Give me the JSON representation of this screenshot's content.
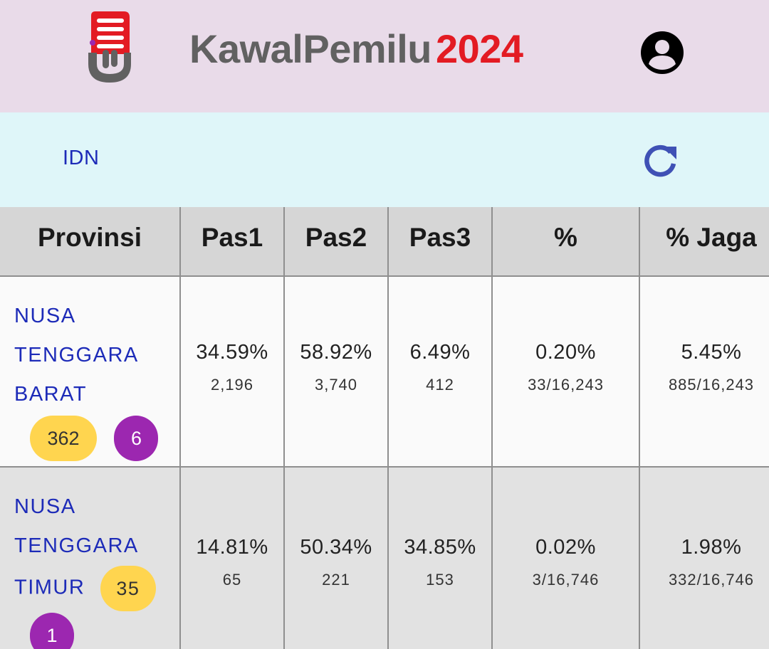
{
  "header": {
    "app_name": "KawalPemilu",
    "year": "2024",
    "brand_colors": {
      "title_gray": "#616161",
      "year_red": "#e31b23",
      "header_bg": "#e9dbe9"
    }
  },
  "nav": {
    "breadcrumb": "IDN",
    "refresh_icon": "refresh-icon"
  },
  "table": {
    "columns": [
      "Provinsi",
      "Pas1",
      "Pas2",
      "Pas3",
      "%",
      "% Jaga"
    ],
    "rows": [
      {
        "province_lines": [
          "NUSA",
          "TENGGARA",
          "BARAT"
        ],
        "badge_yellow": "362",
        "badge_purple": "6",
        "pas1_pct": "34.59%",
        "pas1_count": "2,196",
        "pas2_pct": "58.92%",
        "pas2_count": "3,740",
        "pas3_pct": "6.49%",
        "pas3_count": "412",
        "pct": "0.20%",
        "pct_detail": "33/16,243",
        "jaga_pct": "5.45%",
        "jaga_detail": "885/16,243"
      },
      {
        "province_lines": [
          "NUSA",
          "TENGGARA",
          "TIMUR"
        ],
        "badge_yellow": "35",
        "badge_purple": "1",
        "pas1_pct": "14.81%",
        "pas1_count": "65",
        "pas2_pct": "50.34%",
        "pas2_count": "221",
        "pas3_pct": "34.85%",
        "pas3_count": "153",
        "pct": "0.02%",
        "pct_detail": "3/16,746",
        "jaga_pct": "1.98%",
        "jaga_detail": "332/16,746"
      }
    ]
  }
}
